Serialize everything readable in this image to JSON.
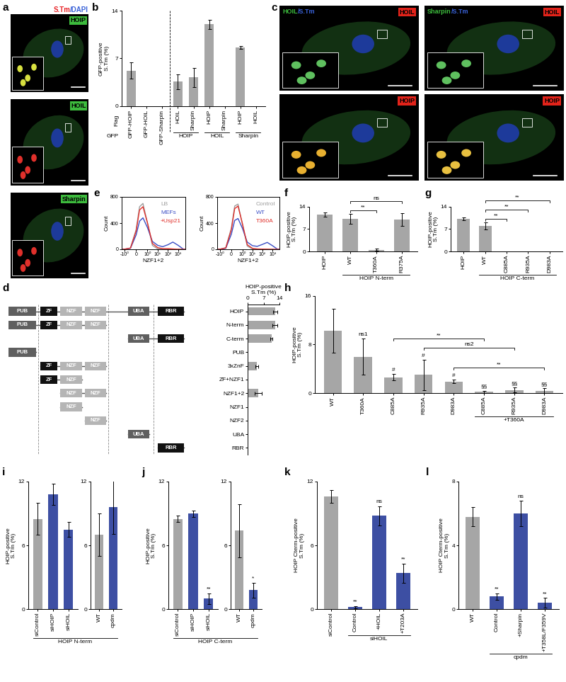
{
  "micrographs": [
    {
      "panel": "a",
      "header": [
        {
          "text": "S.Tm",
          "color": "#e8262a"
        },
        {
          "text": "/DAPI",
          "color": "#3a62d8"
        }
      ],
      "tiles": [
        {
          "tag": "HOIP",
          "tag_color": "#3dbb3d"
        },
        {
          "tag": "HOIL",
          "tag_color": "#3dbb3d"
        },
        {
          "tag": "Sharpin",
          "tag_color": "#3dbb3d"
        }
      ]
    },
    {
      "panel": "c",
      "tiles": [
        {
          "tag": "HOIL",
          "tag_color": "#e2231a",
          "overlay": [
            {
              "text": "HOIL",
              "color": "#3dbb3d"
            },
            {
              "text": "/S.Tm",
              "color": "#3a62d8"
            }
          ]
        },
        {
          "tag": "HOIP",
          "tag_color": "#e2231a"
        },
        {
          "tag": "HOIL",
          "tag_color": "#e2231a",
          "overlay": [
            {
              "text": "Sharpin",
              "color": "#3dbb3d"
            },
            {
              "text": "/S.Tm",
              "color": "#3a62d8"
            }
          ]
        },
        {
          "tag": "HOIP",
          "tag_color": "#e2231a"
        }
      ]
    }
  ],
  "chart_data": [
    {
      "panel": "b",
      "type": "bar",
      "y_label": "GFP-positive S.Tm (%)",
      "color": "#a6a6a6",
      "categories": [
        "GFP-HOIP",
        "GFP-HOIL",
        "GFP-Sharpin",
        "HOIL",
        "Sharpin",
        "HOIP",
        "Sharpin",
        "HOIP",
        "HOIL"
      ],
      "values": [
        5.2,
        0,
        0,
        3.6,
        4.2,
        12.0,
        0,
        8.6,
        0
      ],
      "errors": [
        1.2,
        0,
        0,
        1.1,
        1.4,
        0.7,
        0,
        0.2,
        0
      ],
      "groups": [
        {
          "label": "HOIP",
          "from": 3,
          "to": 4
        },
        {
          "label": "HOIL",
          "from": 5,
          "to": 6
        },
        {
          "label": "Sharpin",
          "from": 7,
          "to": 8
        }
      ],
      "row_labels": [
        "Flag",
        "GFP"
      ],
      "divider_after": 2,
      "ylim": [
        0,
        14
      ],
      "yticks": [
        0,
        7,
        14
      ]
    },
    {
      "panel": "e",
      "type": "line",
      "log": "x",
      "x_label": "NZF1+2",
      "y_label": "Count",
      "x": [
        -2,
        -1,
        -0.5,
        0,
        0.3,
        0.6,
        1,
        3,
        10,
        30,
        100,
        300,
        1000,
        3000,
        5000
      ],
      "series": [
        {
          "name": "LB",
          "color": "#9e9e9e",
          "values": [
            0,
            2,
            20,
            300,
            650,
            700,
            400,
            60,
            5,
            0,
            0,
            0,
            0,
            0,
            0
          ]
        },
        {
          "name": "MEFs",
          "color": "#3a4dc4",
          "values": [
            0,
            2,
            15,
            220,
            430,
            480,
            330,
            120,
            60,
            40,
            70,
            110,
            60,
            5,
            0
          ]
        },
        {
          "name": "+Usp21",
          "color": "#e0302b",
          "values": [
            0,
            2,
            18,
            280,
            600,
            650,
            400,
            90,
            25,
            10,
            10,
            5,
            0,
            0,
            0
          ]
        }
      ],
      "xlim": [
        -2,
        5000
      ],
      "xticks": [
        {
          "value": -1,
          "label": "-10⁰"
        },
        0,
        {
          "value": 1,
          "label": "10⁰"
        },
        {
          "value": 10,
          "label": "10¹"
        },
        {
          "value": 100,
          "label": "10²"
        },
        {
          "value": 1000,
          "label": "10³"
        }
      ],
      "ylim": [
        0,
        800
      ],
      "yticks": [
        0,
        400,
        800
      ],
      "legend": "upper right"
    },
    {
      "type": "line",
      "log": "x",
      "x_label": "NZF1+2",
      "y_label": "Count",
      "x": [
        -2,
        -1,
        -0.5,
        0,
        0.3,
        0.6,
        1,
        3,
        10,
        30,
        100,
        300,
        1000,
        3000,
        5000
      ],
      "series": [
        {
          "name": "Control",
          "color": "#9e9e9e",
          "values": [
            0,
            2,
            25,
            320,
            660,
            690,
            380,
            50,
            4,
            0,
            0,
            0,
            0,
            0,
            0
          ]
        },
        {
          "name": "WT",
          "color": "#3a4dc4",
          "values": [
            0,
            2,
            15,
            230,
            440,
            470,
            320,
            110,
            55,
            45,
            75,
            105,
            55,
            4,
            0
          ]
        },
        {
          "name": "T360A",
          "color": "#e0302b",
          "values": [
            0,
            2,
            20,
            300,
            620,
            660,
            390,
            70,
            15,
            5,
            3,
            2,
            0,
            0,
            0
          ]
        }
      ],
      "xlim": [
        -2,
        5000
      ],
      "xticks": [
        {
          "value": -1,
          "label": "-10⁰"
        },
        0,
        {
          "value": 1,
          "label": "10⁰"
        },
        {
          "value": 10,
          "label": "10¹"
        },
        {
          "value": 100,
          "label": "10²"
        },
        {
          "value": 1000,
          "label": "10³"
        }
      ],
      "ylim": [
        0,
        800
      ],
      "yticks": [
        0,
        400,
        800
      ],
      "legend": "upper right"
    },
    {
      "panel": "f",
      "type": "bar",
      "y_label": "HOIP-positive S.Tm (%)",
      "color": "#a6a6a6",
      "categories": [
        "HOIP",
        "WT",
        "T360A",
        "R375A"
      ],
      "values": [
        11.5,
        10.2,
        0.5,
        10.0
      ],
      "errors": [
        0.7,
        1.5,
        0.3,
        2.0
      ],
      "groups": [
        {
          "label": "HOIP N-term",
          "from": 1,
          "to": 3
        }
      ],
      "brackets": [
        {
          "from": 1,
          "to": 2,
          "label": "**"
        },
        {
          "from": 1,
          "to": 3,
          "label": "ns"
        }
      ],
      "ylim": [
        0,
        14
      ],
      "yticks": [
        0,
        7,
        14
      ]
    },
    {
      "panel": "g",
      "type": "bar",
      "y_label": "HOIP-positive S.Tm (%)",
      "color": "#a6a6a6",
      "categories": [
        "HOIP",
        "WT",
        "C885A",
        "R935A",
        "D983A"
      ],
      "values": [
        10.2,
        8.0,
        0,
        0,
        0
      ],
      "errors": [
        0.5,
        1.2,
        0,
        0,
        0
      ],
      "groups": [
        {
          "label": "HOIP C-term",
          "from": 1,
          "to": 4
        }
      ],
      "brackets": [
        {
          "from": 1,
          "to": 2,
          "label": "**"
        },
        {
          "from": 1,
          "to": 3,
          "label": "**"
        },
        {
          "from": 1,
          "to": 4,
          "label": "**"
        }
      ],
      "ylim": [
        0,
        14
      ],
      "yticks": [
        0,
        7,
        14
      ]
    },
    {
      "panel": "d",
      "type": "bar",
      "orientation": "horizontal",
      "x_label": "HOIP-positive S.Tm (%)",
      "color": "#a6a6a6",
      "categories": [
        "HOIP",
        "N-term",
        "C-term",
        "PUB",
        "3xZnF",
        "ZF+NZF1",
        "NZF1+2",
        "NZF1",
        "NZF2",
        "UBA",
        "RBR"
      ],
      "values": [
        12.2,
        12.0,
        10.5,
        0,
        4.0,
        0,
        4.6,
        0,
        0,
        0,
        0
      ],
      "errors": [
        1.0,
        1.0,
        0.5,
        0,
        0.7,
        0,
        1.5,
        0,
        0,
        0,
        0
      ],
      "domains": [
        [
          "PUB",
          "ZF",
          "NZF",
          "NZF",
          "UBA",
          "RBR"
        ],
        [
          "PUB",
          "ZF",
          "NZF",
          "NZF",
          null,
          null
        ],
        [
          null,
          null,
          null,
          null,
          "UBA",
          "RBR"
        ],
        [
          "PUB",
          null,
          null,
          null,
          null,
          null
        ],
        [
          null,
          "ZF",
          "NZF",
          "NZF",
          null,
          null
        ],
        [
          null,
          "ZF",
          "NZF",
          null,
          null,
          null
        ],
        [
          null,
          null,
          "NZF",
          "NZF",
          null,
          null
        ],
        [
          null,
          null,
          "NZF",
          null,
          null,
          null
        ],
        [
          null,
          null,
          null,
          "NZF",
          null,
          null
        ],
        [
          null,
          null,
          null,
          null,
          "UBA",
          null
        ],
        [
          null,
          null,
          null,
          null,
          null,
          "RBR"
        ]
      ],
      "domain_colors": {
        "PUB": "#5f5f5f",
        "ZF": "#111111",
        "NZF": "#b5b5b5",
        "UBA": "#5f5f5f",
        "RBR": "#111111"
      },
      "xlim": [
        0,
        14
      ],
      "xticks": [
        0,
        7,
        14
      ]
    },
    {
      "panel": "h",
      "type": "bar",
      "y_label": "HOIP-positive S.Tm (%)",
      "color": "#a6a6a6",
      "categories": [
        "WT",
        "T360A",
        "C885A",
        "R935A",
        "D983A",
        "C885A",
        "R935A",
        "D983A"
      ],
      "values": [
        10.3,
        6.0,
        2.6,
        3.0,
        1.9,
        0.2,
        0.5,
        0.4
      ],
      "errors": [
        3.6,
        3.0,
        0.5,
        2.5,
        0.3,
        0.2,
        0.4,
        0.4
      ],
      "marks": [
        null,
        "ns1",
        "#",
        "#",
        "#",
        "§§",
        "§§",
        "§§"
      ],
      "groups": [
        {
          "label": "+T360A",
          "from": 5,
          "to": 7
        }
      ],
      "brackets": [
        {
          "from": 4,
          "to": 7,
          "label": "**"
        },
        {
          "from": 3,
          "to": 6,
          "label": "ns2"
        },
        {
          "from": 2,
          "to": 5,
          "label": "**"
        }
      ],
      "ylim": [
        0,
        16
      ],
      "yticks": [
        0,
        8,
        16
      ]
    },
    {
      "panel": "i",
      "type": "bar",
      "y_label": "HOIP-positive S.Tm (%)",
      "group_label": "HOIP N-term",
      "ylim": [
        0,
        12
      ],
      "yticks": [
        0,
        6,
        12
      ],
      "parts": [
        {
          "categories": [
            "siControl",
            "siHOIP",
            "siHOIL"
          ],
          "values": [
            8.5,
            10.8,
            7.5
          ],
          "errors": [
            1.5,
            1.0,
            0.7
          ],
          "colors": [
            "#a6a6a6",
            "#3d4fa3",
            "#3d4fa3"
          ]
        },
        {
          "categories": [
            "WT",
            "cpdm"
          ],
          "values": [
            7.0,
            9.6
          ],
          "errors": [
            2.0,
            2.5
          ],
          "colors": [
            "#a6a6a6",
            "#3d4fa3"
          ]
        }
      ]
    },
    {
      "panel": "j",
      "type": "bar",
      "y_label": "HOIP-positive S.Tm (%)",
      "group_label": "HOIP C-term",
      "ylim": [
        0,
        12
      ],
      "yticks": [
        0,
        6,
        12
      ],
      "parts": [
        {
          "categories": [
            "siControl",
            "siHOIP",
            "siHOIL"
          ],
          "values": [
            8.5,
            9.0,
            1.0
          ],
          "errors": [
            0.3,
            0.3,
            0.5
          ],
          "colors": [
            "#a6a6a6",
            "#3d4fa3",
            "#3d4fa3"
          ],
          "marks": [
            null,
            null,
            "**"
          ]
        },
        {
          "categories": [
            "WT",
            "cpdm"
          ],
          "values": [
            7.4,
            1.8
          ],
          "errors": [
            2.5,
            0.7
          ],
          "colors": [
            "#a6a6a6",
            "#3d4fa3"
          ],
          "marks": [
            null,
            "*"
          ]
        }
      ]
    },
    {
      "panel": "k",
      "type": "bar",
      "y_label": "HOIP Cterm-positive S.Tm (%)",
      "categories": [
        "siControl",
        "Control",
        "+HOIL",
        "+T203A"
      ],
      "values": [
        10.6,
        0.2,
        8.8,
        3.4
      ],
      "errors": [
        0.6,
        0.1,
        0.9,
        0.9
      ],
      "colors": [
        "#a6a6a6",
        "#3d4fa3",
        "#3d4fa3",
        "#3d4fa3"
      ],
      "marks": [
        null,
        "**",
        "ns",
        "**"
      ],
      "groups": [
        {
          "label": "siHOIL",
          "from": 1,
          "to": 3
        }
      ],
      "ylim": [
        0,
        12
      ],
      "yticks": [
        0,
        6,
        12
      ]
    },
    {
      "panel": "l",
      "type": "bar",
      "y_label": "HOIP Cterm-positive S.Tm (%)",
      "categories": [
        "WT",
        "Control",
        "+Sharpin",
        "+T358L/F359V"
      ],
      "values": [
        5.8,
        0.8,
        6.0,
        0.4
      ],
      "errors": [
        0.6,
        0.2,
        0.8,
        0.3
      ],
      "colors": [
        "#a6a6a6",
        "#3d4fa3",
        "#3d4fa3",
        "#3d4fa3"
      ],
      "marks": [
        null,
        "**",
        "ns",
        "**"
      ],
      "groups": [
        {
          "label": "cpdm",
          "from": 1,
          "to": 3
        }
      ],
      "ylim": [
        0,
        8
      ],
      "yticks": [
        0,
        4,
        8
      ]
    }
  ]
}
